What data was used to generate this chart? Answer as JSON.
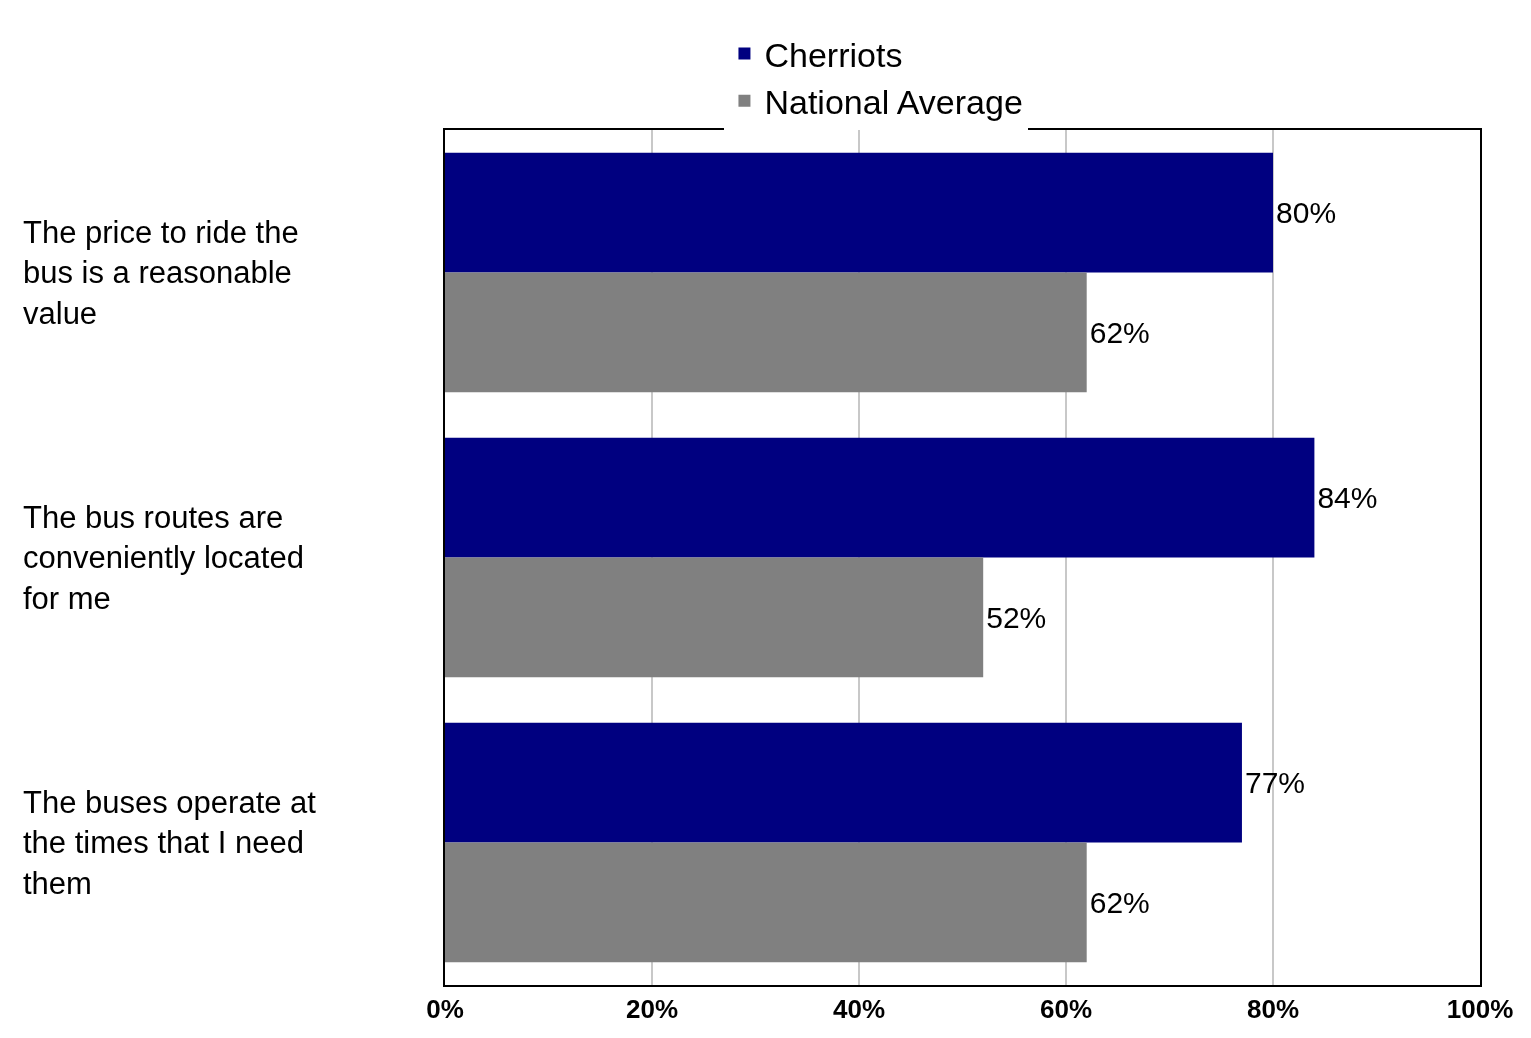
{
  "chart_data": {
    "type": "bar",
    "orientation": "horizontal",
    "categories": [
      "The price to ride the bus is a reasonable value",
      "The bus routes are conveniently located for me",
      "The buses operate at the times that I need them"
    ],
    "series": [
      {
        "name": "Cherriots",
        "color": "#000080",
        "values": [
          80,
          84,
          77
        ],
        "value_labels": [
          "80%",
          "84%",
          "77%"
        ]
      },
      {
        "name": "National Average",
        "color": "#808080",
        "values": [
          62,
          52,
          62
        ],
        "value_labels": [
          "62%",
          "52%",
          "62%"
        ]
      }
    ],
    "xlim": [
      0,
      100
    ],
    "xticks": [
      {
        "value": 0,
        "label": "0%"
      },
      {
        "value": 20,
        "label": "20%"
      },
      {
        "value": 40,
        "label": "40%"
      },
      {
        "value": 60,
        "label": "60%"
      },
      {
        "value": 80,
        "label": "80%"
      },
      {
        "value": 100,
        "label": "100%"
      }
    ],
    "grid": "x",
    "legend": "top"
  }
}
